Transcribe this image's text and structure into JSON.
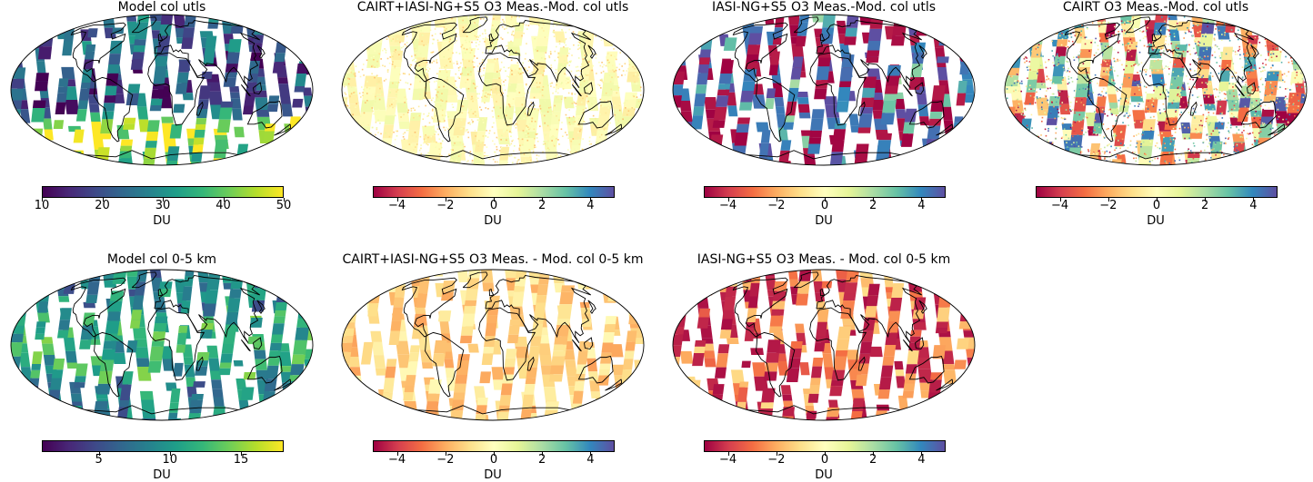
{
  "figure": {
    "panels": [
      {
        "id": "p1",
        "title": "Model col utls",
        "cmap": "viridis",
        "style": "viridis-utls",
        "colorbar": {
          "label": "DU",
          "min": 10,
          "max": 50,
          "ticks": [
            "10",
            "20",
            "30",
            "40",
            "50"
          ]
        }
      },
      {
        "id": "p2",
        "title": "CAIRT+IASI-NG+S5 O3 Meas.-Mod. col utls",
        "cmap": "spectral",
        "style": "pale",
        "colorbar": {
          "label": "DU",
          "min": -5,
          "max": 5,
          "ticks": [
            "−4",
            "−2",
            "0",
            "2",
            "4"
          ]
        }
      },
      {
        "id": "p3",
        "title": "IASI-NG+S5 O3 Meas.-Mod. col utls",
        "cmap": "spectral",
        "style": "mixed",
        "colorbar": {
          "label": "DU",
          "min": -5,
          "max": 5,
          "ticks": [
            "−4",
            "−2",
            "0",
            "2",
            "4"
          ]
        }
      },
      {
        "id": "p4",
        "title": "CAIRT O3 Meas.-Mod. col utls",
        "cmap": "spectral",
        "style": "speckle",
        "colorbar": {
          "label": "DU",
          "min": -5,
          "max": 5,
          "ticks": [
            "−4",
            "−2",
            "0",
            "2",
            "4"
          ]
        }
      },
      {
        "id": "p5",
        "title": "Model col 0-5 km",
        "cmap": "viridis",
        "style": "viridis-low",
        "colorbar": {
          "label": "DU",
          "min": 1,
          "max": 18,
          "ticks": [
            "5",
            "10",
            "15"
          ]
        }
      },
      {
        "id": "p6",
        "title": "CAIRT+IASI-NG+S5 O3 Meas. - Mod. col 0-5 km",
        "cmap": "spectral",
        "style": "orange",
        "colorbar": {
          "label": "DU",
          "min": -5,
          "max": 5,
          "ticks": [
            "−4",
            "−2",
            "0",
            "2",
            "4"
          ]
        }
      },
      {
        "id": "p7",
        "title": "IASI-NG+S5 O3 Meas. - Mod. col 0-5 km",
        "cmap": "spectral",
        "style": "red",
        "colorbar": {
          "label": "DU",
          "min": -5,
          "max": 5,
          "ticks": [
            "−4",
            "−2",
            "0",
            "2",
            "4"
          ]
        }
      }
    ]
  }
}
